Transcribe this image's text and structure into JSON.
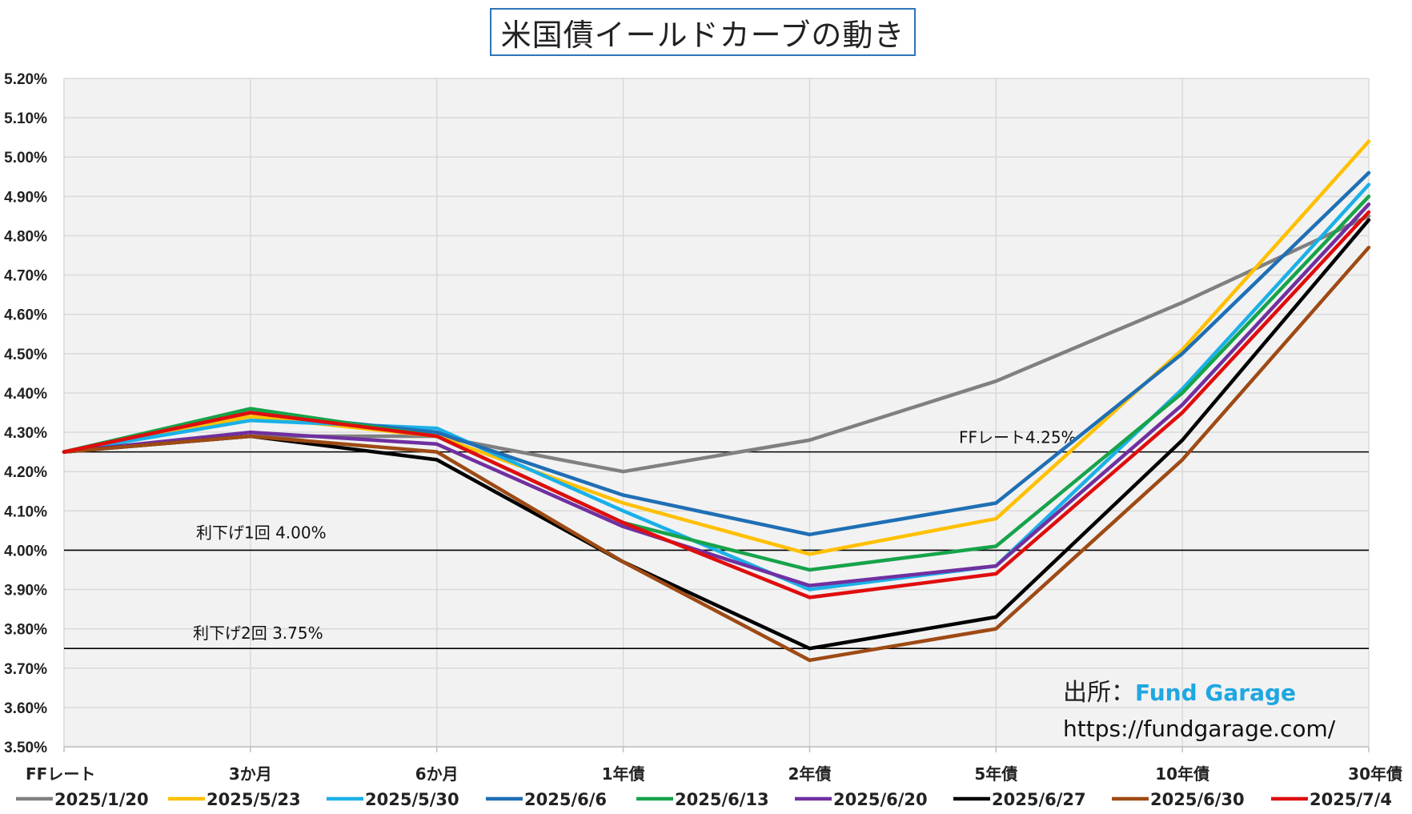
{
  "chart_data": {
    "type": "line",
    "title": "米国債イールドカーブの動き",
    "categories": [
      "FFレート",
      "3か月",
      "6か月",
      "1年債",
      "2年債",
      "5年債",
      "10年債",
      "30年債"
    ],
    "y_ticks": [
      "5.20%",
      "5.10%",
      "5.00%",
      "4.90%",
      "4.80%",
      "4.70%",
      "4.60%",
      "4.50%",
      "4.40%",
      "4.30%",
      "4.20%",
      "4.10%",
      "4.00%",
      "3.90%",
      "3.80%",
      "3.70%",
      "3.60%",
      "3.50%"
    ],
    "ylim": [
      3.5,
      5.2
    ],
    "unit": "%",
    "grid": true,
    "legend_position": "bottom",
    "series": [
      {
        "name": "2025/1/20",
        "color": "#808080",
        "values": [
          4.25,
          4.29,
          4.29,
          4.2,
          4.28,
          4.43,
          4.63,
          4.85
        ]
      },
      {
        "name": "2025/5/23",
        "color": "#ffc000",
        "values": [
          4.25,
          4.34,
          4.29,
          4.12,
          3.99,
          4.08,
          4.51,
          5.04
        ]
      },
      {
        "name": "2025/5/30",
        "color": "#1ab0e8",
        "values": [
          4.25,
          4.33,
          4.31,
          4.1,
          3.9,
          3.96,
          4.41,
          4.93
        ]
      },
      {
        "name": "2025/6/6",
        "color": "#1f6fb5",
        "values": [
          4.25,
          4.35,
          4.3,
          4.14,
          4.04,
          4.12,
          4.5,
          4.96
        ]
      },
      {
        "name": "2025/6/13",
        "color": "#17a34a",
        "values": [
          4.25,
          4.36,
          4.29,
          4.07,
          3.95,
          4.01,
          4.4,
          4.9
        ]
      },
      {
        "name": "2025/6/20",
        "color": "#7030a0",
        "values": [
          4.25,
          4.3,
          4.27,
          4.06,
          3.91,
          3.96,
          4.37,
          4.88
        ]
      },
      {
        "name": "2025/6/27",
        "color": "#000000",
        "values": [
          4.25,
          4.29,
          4.23,
          3.97,
          3.75,
          3.83,
          4.28,
          4.84
        ]
      },
      {
        "name": "2025/6/30",
        "color": "#9e4a14",
        "values": [
          4.25,
          4.29,
          4.25,
          3.97,
          3.72,
          3.8,
          4.23,
          4.77
        ]
      },
      {
        "name": "2025/7/4",
        "color": "#e00d0d",
        "values": [
          4.25,
          4.35,
          4.29,
          4.07,
          3.88,
          3.94,
          4.35,
          4.86
        ]
      }
    ],
    "reference_lines": [
      {
        "value": 4.25,
        "label": "FFレート4.25%"
      },
      {
        "value": 4.0,
        "label": "利下げ1回 4.00%"
      },
      {
        "value": 3.75,
        "label": "利下げ2回 3.75%"
      }
    ]
  },
  "source": {
    "prefix": "出所：",
    "name": "Fund Garage",
    "url": "https://fundgarage.com/"
  }
}
